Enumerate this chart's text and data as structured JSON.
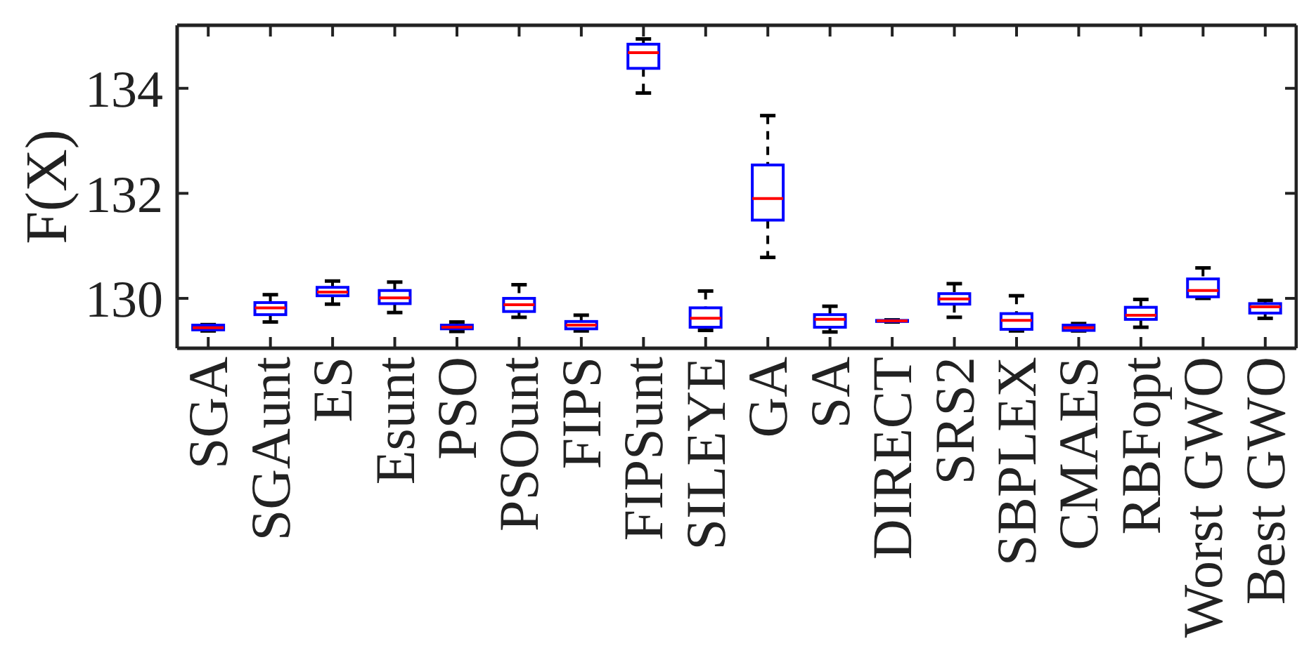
{
  "chart_data": {
    "type": "box",
    "ylabel": "F(X)",
    "categories": [
      "SGA",
      "SGAunt",
      "ES",
      "Esunt",
      "PSO",
      "PSOunt",
      "FIPS",
      "FIPSunt",
      "SILEYE",
      "GA",
      "SA",
      "DIRECT",
      "SRS2",
      "SBPLEX",
      "CMAES",
      "RBFopt",
      "Worst GWO",
      "Best GWO"
    ],
    "boxes": [
      {
        "low": 129.38,
        "q1": 129.4,
        "median": 129.44,
        "q3": 129.49,
        "high": 129.5
      },
      {
        "low": 129.55,
        "q1": 129.69,
        "median": 129.82,
        "q3": 129.92,
        "high": 130.07
      },
      {
        "low": 129.89,
        "q1": 130.05,
        "median": 130.12,
        "q3": 130.21,
        "high": 130.33
      },
      {
        "low": 129.73,
        "q1": 129.9,
        "median": 130.01,
        "q3": 130.15,
        "high": 130.31
      },
      {
        "low": 129.37,
        "q1": 129.42,
        "median": 129.45,
        "q3": 129.49,
        "high": 129.55
      },
      {
        "low": 129.64,
        "q1": 129.75,
        "median": 129.88,
        "q3": 130.0,
        "high": 130.26
      },
      {
        "low": 129.38,
        "q1": 129.42,
        "median": 129.49,
        "q3": 129.56,
        "high": 129.68
      },
      {
        "low": 133.91,
        "q1": 134.38,
        "median": 134.68,
        "q3": 134.84,
        "high": 134.94
      },
      {
        "low": 129.39,
        "q1": 129.45,
        "median": 129.62,
        "q3": 129.82,
        "high": 130.14
      },
      {
        "low": 130.78,
        "q1": 131.49,
        "median": 131.9,
        "q3": 132.54,
        "high": 133.48
      },
      {
        "low": 129.36,
        "q1": 129.45,
        "median": 129.6,
        "q3": 129.69,
        "high": 129.85
      },
      {
        "low": 129.55,
        "q1": 129.56,
        "median": 129.57,
        "q3": 129.58,
        "high": 129.59
      },
      {
        "low": 129.64,
        "q1": 129.89,
        "median": 129.99,
        "q3": 130.09,
        "high": 130.28
      },
      {
        "low": 129.38,
        "q1": 129.41,
        "median": 129.58,
        "q3": 129.71,
        "high": 130.05
      },
      {
        "low": 129.38,
        "q1": 129.39,
        "median": 129.44,
        "q3": 129.49,
        "high": 129.52
      },
      {
        "low": 129.45,
        "q1": 129.6,
        "median": 129.68,
        "q3": 129.83,
        "high": 129.98
      },
      {
        "low": 130.0,
        "q1": 130.03,
        "median": 130.15,
        "q3": 130.37,
        "high": 130.58
      },
      {
        "low": 129.62,
        "q1": 129.72,
        "median": 129.84,
        "q3": 129.9,
        "high": 129.96
      }
    ],
    "color": "#0000ff",
    "ylim": [
      129.05,
      135.2
    ],
    "yticks": [
      130,
      132,
      134
    ]
  }
}
